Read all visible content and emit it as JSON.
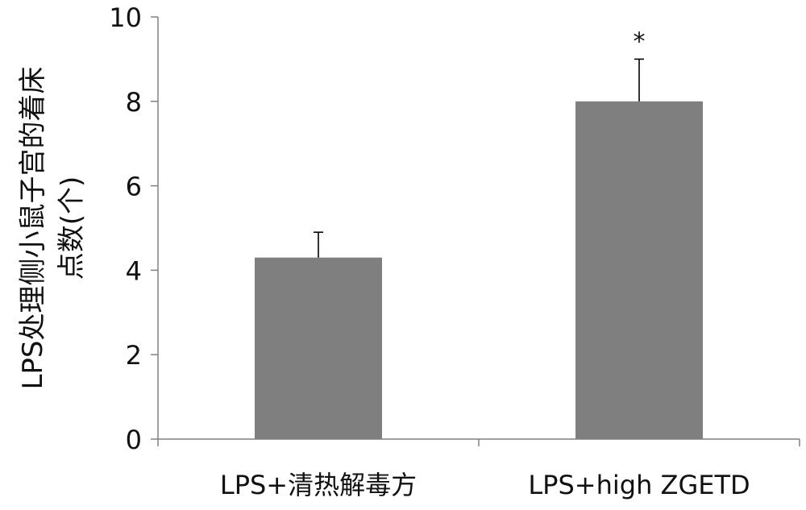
{
  "chart_data": {
    "type": "bar",
    "categories": [
      "LPS+清热解毒方",
      "LPS+high ZGETD"
    ],
    "values": [
      4.3,
      8.0
    ],
    "error": [
      0.6,
      1.0
    ],
    "annotations": [
      "",
      "*"
    ],
    "title": "",
    "xlabel": "",
    "ylabel_lines": [
      "LPS处理侧小鼠子宫的着床",
      "点数(个)"
    ],
    "ylim": [
      0,
      10
    ],
    "yticks": [
      0,
      2,
      4,
      6,
      8,
      10
    ],
    "grid": false,
    "legend": "none",
    "bar_color": "#7f7f7f",
    "axis_color": "#808080"
  }
}
